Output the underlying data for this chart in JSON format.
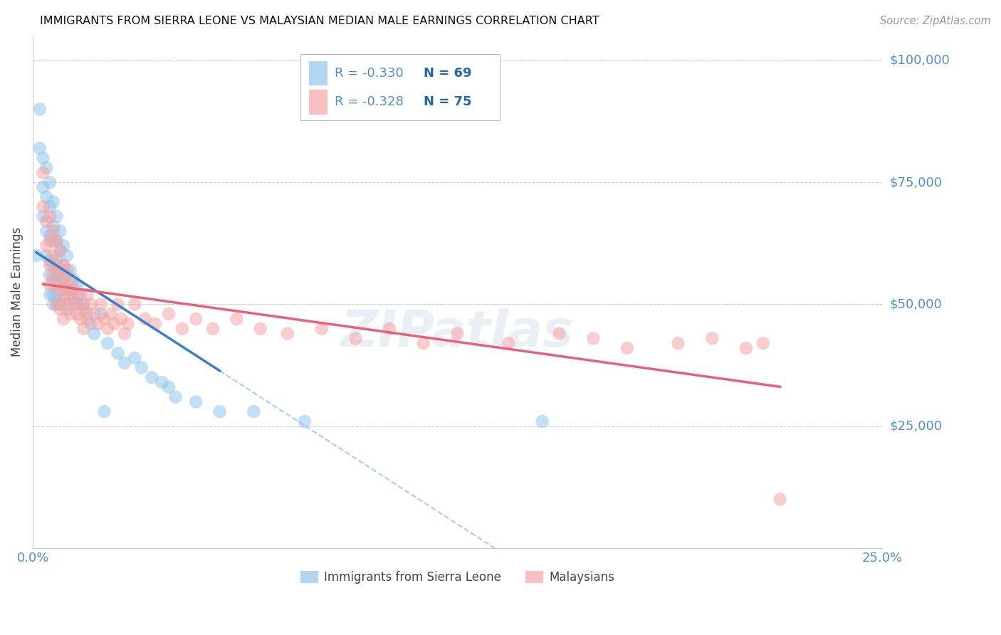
{
  "title": "IMMIGRANTS FROM SIERRA LEONE VS MALAYSIAN MEDIAN MALE EARNINGS CORRELATION CHART",
  "source": "Source: ZipAtlas.com",
  "ylabel": "Median Male Earnings",
  "xlim": [
    0.0,
    0.25
  ],
  "ylim": [
    0,
    105000
  ],
  "ytick_vals": [
    25000,
    50000,
    75000,
    100000
  ],
  "ytick_labels": [
    "$25,000",
    "$50,000",
    "$75,000",
    "$100,000"
  ],
  "xtick_vals": [
    0.0,
    0.05,
    0.1,
    0.15,
    0.2,
    0.25
  ],
  "xtick_labels": [
    "0.0%",
    "",
    "",
    "",
    "",
    "25.0%"
  ],
  "legend_r1": "R = -0.330",
  "legend_n1": "N = 69",
  "legend_r2": "R = -0.328",
  "legend_n2": "N = 75",
  "color_blue": "#92C5EC",
  "color_pink": "#F4A4A4",
  "color_blue_line": "#3B7EC8",
  "color_pink_line": "#E8607A",
  "color_dashed": "#AACCEE",
  "color_ytick": "#4D8FCC",
  "color_xtick": "#4D8FCC",
  "background_color": "#FFFFFF",
  "grid_color": "#CCCCCC",
  "sierra_leone_x": [
    0.001,
    0.002,
    0.002,
    0.003,
    0.003,
    0.003,
    0.004,
    0.004,
    0.004,
    0.004,
    0.005,
    0.005,
    0.005,
    0.005,
    0.005,
    0.005,
    0.006,
    0.006,
    0.006,
    0.006,
    0.006,
    0.006,
    0.006,
    0.007,
    0.007,
    0.007,
    0.007,
    0.007,
    0.007,
    0.008,
    0.008,
    0.008,
    0.008,
    0.008,
    0.009,
    0.009,
    0.009,
    0.009,
    0.01,
    0.01,
    0.01,
    0.01,
    0.011,
    0.011,
    0.012,
    0.012,
    0.013,
    0.013,
    0.014,
    0.015,
    0.016,
    0.017,
    0.018,
    0.02,
    0.021,
    0.022,
    0.025,
    0.027,
    0.03,
    0.032,
    0.035,
    0.038,
    0.04,
    0.042,
    0.048,
    0.055,
    0.065,
    0.08,
    0.15
  ],
  "sierra_leone_y": [
    60000,
    90000,
    82000,
    80000,
    74000,
    68000,
    78000,
    72000,
    65000,
    60000,
    75000,
    70000,
    64000,
    59000,
    56000,
    52000,
    71000,
    66000,
    63000,
    58000,
    55000,
    52000,
    50000,
    68000,
    63000,
    59000,
    56000,
    52000,
    50000,
    65000,
    61000,
    57000,
    54000,
    50000,
    62000,
    58000,
    55000,
    51000,
    60000,
    56000,
    53000,
    49000,
    57000,
    53000,
    55000,
    51000,
    54000,
    50000,
    52000,
    50000,
    48000,
    46000,
    44000,
    48000,
    28000,
    42000,
    40000,
    38000,
    39000,
    37000,
    35000,
    34000,
    33000,
    31000,
    30000,
    28000,
    28000,
    26000,
    26000
  ],
  "malaysian_x": [
    0.003,
    0.003,
    0.004,
    0.004,
    0.005,
    0.005,
    0.005,
    0.005,
    0.006,
    0.006,
    0.006,
    0.007,
    0.007,
    0.007,
    0.007,
    0.008,
    0.008,
    0.008,
    0.008,
    0.009,
    0.009,
    0.009,
    0.009,
    0.01,
    0.01,
    0.01,
    0.011,
    0.011,
    0.011,
    0.012,
    0.012,
    0.013,
    0.013,
    0.014,
    0.014,
    0.015,
    0.015,
    0.016,
    0.016,
    0.017,
    0.018,
    0.019,
    0.02,
    0.021,
    0.022,
    0.023,
    0.024,
    0.025,
    0.026,
    0.027,
    0.028,
    0.03,
    0.033,
    0.036,
    0.04,
    0.044,
    0.048,
    0.053,
    0.06,
    0.067,
    0.075,
    0.085,
    0.095,
    0.105,
    0.115,
    0.125,
    0.14,
    0.155,
    0.165,
    0.175,
    0.19,
    0.2,
    0.21,
    0.215,
    0.22
  ],
  "malaysian_y": [
    77000,
    70000,
    67000,
    62000,
    68000,
    63000,
    58000,
    54000,
    65000,
    60000,
    56000,
    63000,
    58000,
    54000,
    50000,
    61000,
    57000,
    53000,
    49000,
    58000,
    55000,
    51000,
    47000,
    57000,
    53000,
    50000,
    55000,
    52000,
    48000,
    53000,
    50000,
    52000,
    48000,
    50000,
    47000,
    49000,
    45000,
    52000,
    47000,
    50000,
    48000,
    46000,
    50000,
    47000,
    45000,
    48000,
    46000,
    50000,
    47000,
    44000,
    46000,
    50000,
    47000,
    46000,
    48000,
    45000,
    47000,
    45000,
    47000,
    45000,
    44000,
    45000,
    43000,
    45000,
    42000,
    44000,
    42000,
    44000,
    43000,
    41000,
    42000,
    43000,
    41000,
    42000,
    10000
  ]
}
